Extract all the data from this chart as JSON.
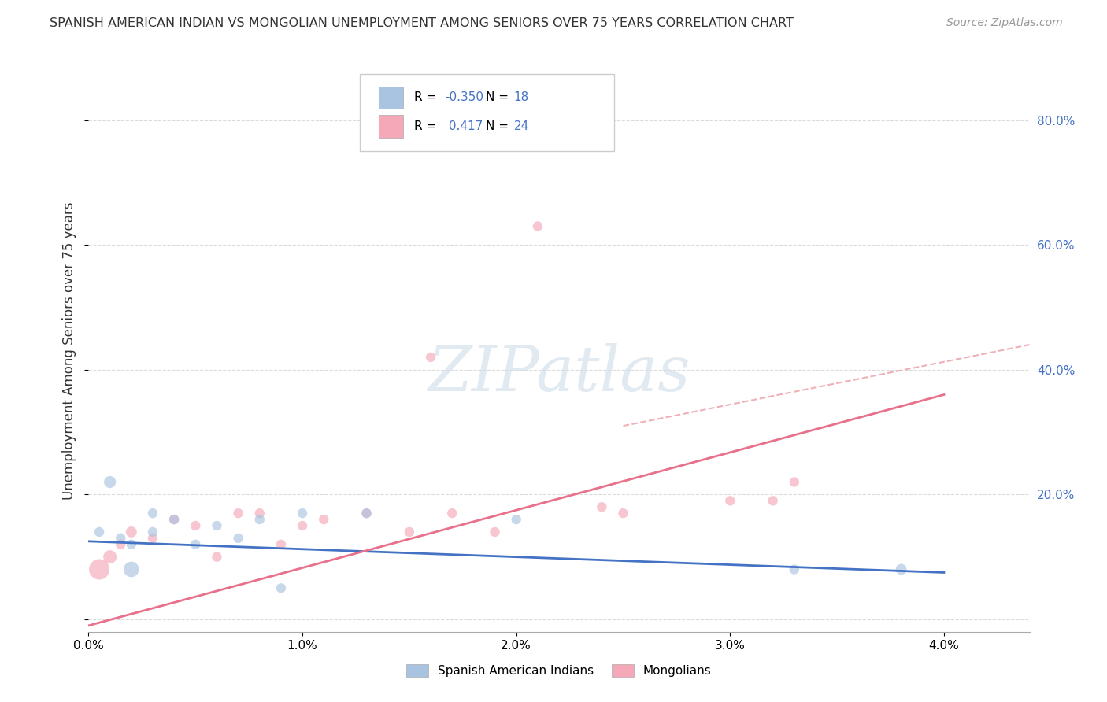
{
  "title": "SPANISH AMERICAN INDIAN VS MONGOLIAN UNEMPLOYMENT AMONG SENIORS OVER 75 YEARS CORRELATION CHART",
  "source": "Source: ZipAtlas.com",
  "ylabel": "Unemployment Among Seniors over 75 years",
  "xlim": [
    0.0,
    0.044
  ],
  "ylim": [
    -0.02,
    0.88
  ],
  "yticks": [
    0.0,
    0.2,
    0.4,
    0.6,
    0.8
  ],
  "ytick_labels": [
    "",
    "20.0%",
    "40.0%",
    "60.0%",
    "80.0%"
  ],
  "xticks": [
    0.0,
    0.01,
    0.02,
    0.03,
    0.04
  ],
  "xtick_labels": [
    "0.0%",
    "1.0%",
    "2.0%",
    "3.0%",
    "4.0%"
  ],
  "blue_R": -0.35,
  "blue_N": 18,
  "pink_R": 0.417,
  "pink_N": 24,
  "blue_color": "#a8c4e0",
  "pink_color": "#f4a8b8",
  "blue_line_color": "#4472c4",
  "pink_line_color": "#e8708a",
  "dashed_line_color": "#f0b0b8",
  "legend_blue_label": "Spanish American Indians",
  "legend_pink_label": "Mongolians",
  "watermark": "ZIPatlas",
  "blue_scatter_x": [
    0.0005,
    0.001,
    0.0015,
    0.002,
    0.002,
    0.003,
    0.003,
    0.004,
    0.005,
    0.006,
    0.007,
    0.008,
    0.009,
    0.01,
    0.013,
    0.02,
    0.033,
    0.038
  ],
  "blue_scatter_y": [
    0.14,
    0.22,
    0.13,
    0.08,
    0.12,
    0.14,
    0.17,
    0.16,
    0.12,
    0.15,
    0.13,
    0.16,
    0.05,
    0.17,
    0.17,
    0.16,
    0.08,
    0.08
  ],
  "blue_scatter_size": [
    80,
    120,
    80,
    200,
    80,
    80,
    80,
    80,
    80,
    80,
    80,
    80,
    80,
    80,
    80,
    80,
    80,
    100
  ],
  "pink_scatter_x": [
    0.0005,
    0.001,
    0.0015,
    0.002,
    0.003,
    0.004,
    0.005,
    0.006,
    0.007,
    0.008,
    0.009,
    0.01,
    0.011,
    0.013,
    0.015,
    0.016,
    0.017,
    0.019,
    0.021,
    0.024,
    0.025,
    0.03,
    0.032,
    0.033
  ],
  "pink_scatter_y": [
    0.08,
    0.1,
    0.12,
    0.14,
    0.13,
    0.16,
    0.15,
    0.1,
    0.17,
    0.17,
    0.12,
    0.15,
    0.16,
    0.17,
    0.14,
    0.42,
    0.17,
    0.14,
    0.63,
    0.18,
    0.17,
    0.19,
    0.19,
    0.22
  ],
  "pink_scatter_size": [
    350,
    150,
    80,
    100,
    80,
    80,
    80,
    80,
    80,
    80,
    80,
    80,
    80,
    80,
    80,
    80,
    80,
    80,
    80,
    80,
    80,
    80,
    80,
    80
  ],
  "background_color": "#ffffff",
  "grid_color": "#cccccc",
  "blue_line_y0": 0.125,
  "blue_line_y1": 0.075,
  "pink_line_y0": -0.01,
  "pink_line_y1": 0.36,
  "dashed_line_y0": 0.31,
  "dashed_line_y1": 0.44
}
